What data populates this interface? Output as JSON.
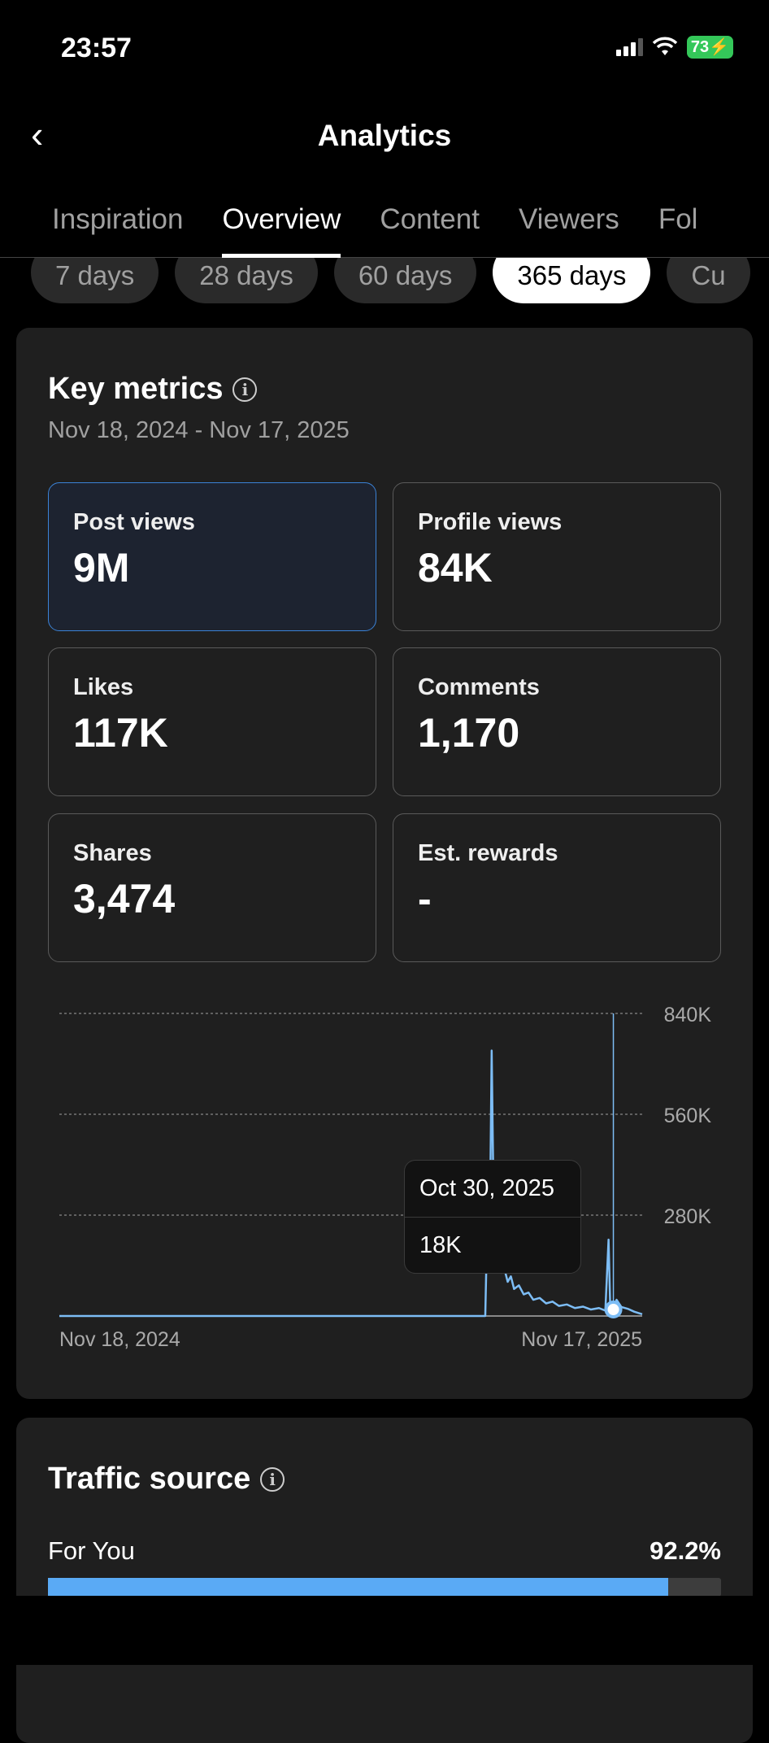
{
  "status_bar": {
    "time": "23:57",
    "battery": "73"
  },
  "header": {
    "title": "Analytics",
    "back_icon": "chevron-left-icon"
  },
  "tabs": [
    {
      "label": "Inspiration"
    },
    {
      "label": "Overview",
      "active": true
    },
    {
      "label": "Content"
    },
    {
      "label": "Viewers"
    },
    {
      "label": "Fol"
    }
  ],
  "ranges": [
    {
      "label": "7 days"
    },
    {
      "label": "28 days"
    },
    {
      "label": "60 days"
    },
    {
      "label": "365 days",
      "active": true
    },
    {
      "label": "Cu"
    }
  ],
  "key_metrics": {
    "title": "Key metrics",
    "date_range": "Nov 18, 2024 - Nov 17, 2025",
    "metrics": [
      {
        "label": "Post views",
        "value": "9M",
        "selected": true
      },
      {
        "label": "Profile views",
        "value": "84K"
      },
      {
        "label": "Likes",
        "value": "117K"
      },
      {
        "label": "Comments",
        "value": "1,170"
      },
      {
        "label": "Shares",
        "value": "3,474"
      },
      {
        "label": "Est. rewards",
        "value": "-"
      }
    ]
  },
  "tooltip": {
    "date": "Oct 30, 2025",
    "value": "18K"
  },
  "chart_data": {
    "type": "line",
    "series_color": "#7dbdf5",
    "y_ticks": [
      "280K",
      "560K",
      "840K"
    ],
    "ylim": [
      0,
      840000
    ],
    "x_labels": [
      "Nov 18, 2024",
      "Nov 17, 2025"
    ],
    "xlim": [
      "2024-11-18",
      "2025-11-17"
    ],
    "grid": "dashed horizontal",
    "highlight": {
      "x": "2025-10-30",
      "y": 18000
    },
    "points": [
      [
        "2024-11-18",
        0
      ],
      [
        "2025-08-11",
        0
      ],
      [
        "2025-08-13",
        420000
      ],
      [
        "2025-08-14",
        300000
      ],
      [
        "2025-08-15",
        737000
      ],
      [
        "2025-08-16",
        380000
      ],
      [
        "2025-08-17",
        260000
      ],
      [
        "2025-08-19",
        180000
      ],
      [
        "2025-08-21",
        120000
      ],
      [
        "2025-08-23",
        130000
      ],
      [
        "2025-08-25",
        95000
      ],
      [
        "2025-08-27",
        110000
      ],
      [
        "2025-08-29",
        75000
      ],
      [
        "2025-09-01",
        85000
      ],
      [
        "2025-09-04",
        60000
      ],
      [
        "2025-09-07",
        65000
      ],
      [
        "2025-09-10",
        45000
      ],
      [
        "2025-09-14",
        50000
      ],
      [
        "2025-09-18",
        35000
      ],
      [
        "2025-09-22",
        40000
      ],
      [
        "2025-09-26",
        28000
      ],
      [
        "2025-10-01",
        32000
      ],
      [
        "2025-10-06",
        22000
      ],
      [
        "2025-10-11",
        26000
      ],
      [
        "2025-10-16",
        18000
      ],
      [
        "2025-10-21",
        22000
      ],
      [
        "2025-10-25",
        15000
      ],
      [
        "2025-10-27",
        212000
      ],
      [
        "2025-10-28",
        30000
      ],
      [
        "2025-10-29",
        20000
      ],
      [
        "2025-10-30",
        18000
      ],
      [
        "2025-11-01",
        45000
      ],
      [
        "2025-11-04",
        25000
      ],
      [
        "2025-11-08",
        20000
      ],
      [
        "2025-11-12",
        12000
      ],
      [
        "2025-11-17",
        5000
      ]
    ]
  },
  "traffic_source": {
    "title": "Traffic source",
    "items": [
      {
        "label": "For You",
        "value": "92.2%",
        "percent": 92.2
      }
    ]
  },
  "colors": {
    "accent": "#5aaaf5",
    "selected_border": "#3b82d6",
    "battery": "#34c759"
  }
}
